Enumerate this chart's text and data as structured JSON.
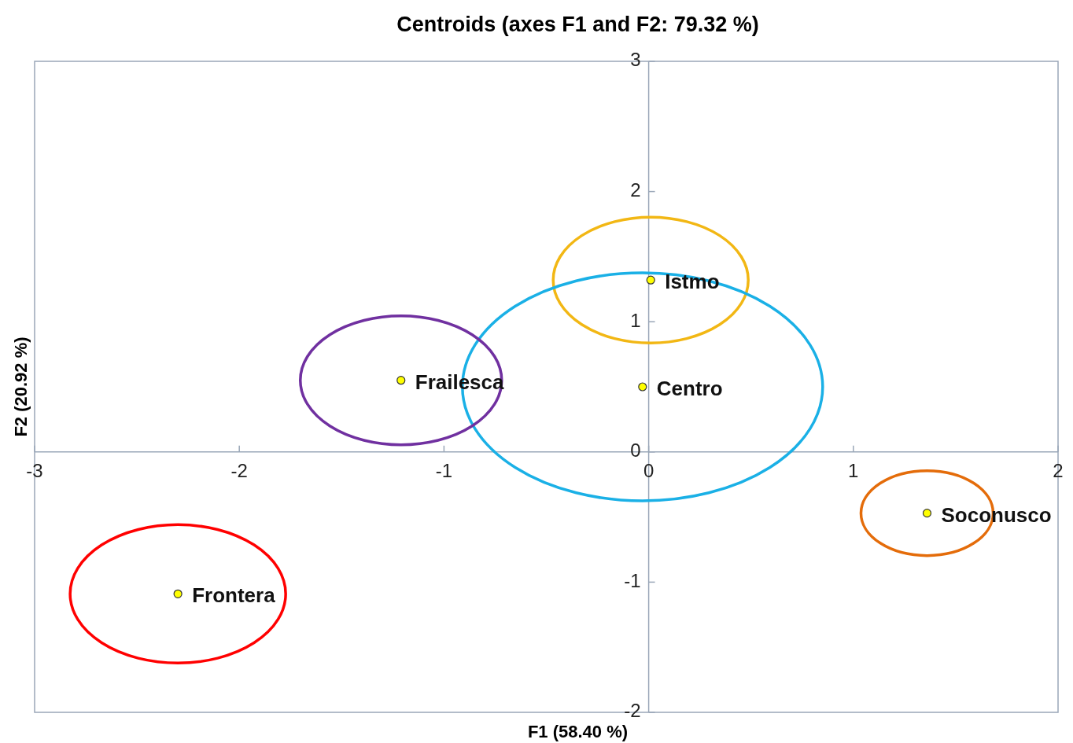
{
  "chart_data": {
    "type": "scatter",
    "title": "Centroids (axes F1 and F2: 79.32 %)",
    "xlabel": "F1 (58.40 %)",
    "ylabel": "F2 (20.92 %)",
    "xlim": [
      -3,
      2
    ],
    "xticks": [
      -3,
      -2,
      -1,
      0,
      1,
      2
    ],
    "ylim": [
      -2,
      3
    ],
    "yticks": [
      -2,
      -1,
      0,
      1,
      2,
      3
    ],
    "grid": false,
    "legend": false,
    "series": [
      {
        "type": "scatter",
        "name": "Istmo",
        "color": "#ffff00",
        "marker": "circle",
        "x": [
          0.01
        ],
        "values": [
          1.32
        ]
      },
      {
        "type": "scatter",
        "name": "Centro",
        "color": "#ffff00",
        "marker": "circle",
        "x": [
          -0.03
        ],
        "values": [
          0.5
        ]
      },
      {
        "type": "scatter",
        "name": "Frailesca",
        "color": "#ffff00",
        "marker": "circle",
        "x": [
          -1.21
        ],
        "values": [
          0.55
        ]
      },
      {
        "type": "scatter",
        "name": "Soconusco",
        "color": "#ffff00",
        "marker": "circle",
        "x": [
          1.36
        ],
        "values": [
          -0.47
        ]
      },
      {
        "type": "scatter",
        "name": "Frontera",
        "color": "#ffff00",
        "marker": "circle",
        "x": [
          -2.3
        ],
        "values": [
          -1.09
        ]
      }
    ]
  }
}
